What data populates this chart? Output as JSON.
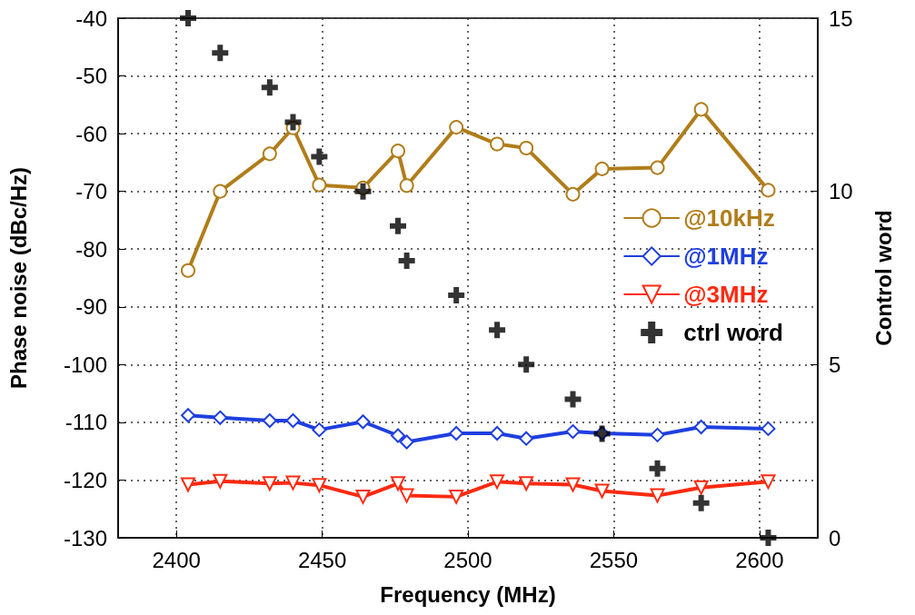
{
  "chart_data": {
    "type": "line",
    "xlabel": "Frequency (MHz)",
    "ylabel": "Phase noise (dBc/Hz)",
    "y2label": "Control word",
    "x": [
      2404,
      2415,
      2432,
      2440,
      2449,
      2464,
      2476,
      2479,
      2496,
      2510,
      2520,
      2536,
      2546,
      2565,
      2580,
      2603
    ],
    "xlim": [
      2380,
      2620
    ],
    "xticks": [
      2400,
      2450,
      2500,
      2550,
      2600
    ],
    "ylim": [
      -130,
      -40
    ],
    "yticks": [
      -130,
      -120,
      -110,
      -100,
      -90,
      -80,
      -70,
      -60,
      -50,
      -40
    ],
    "y2lim": [
      0,
      15
    ],
    "y2ticks": [
      0,
      5,
      10,
      15
    ],
    "grid": true,
    "legend": "right",
    "line_style": "solid",
    "series": [
      {
        "name": "@10kHz",
        "color": "#b07d1a",
        "marker": "circle",
        "values": [
          -83.7,
          -70.0,
          -63.5,
          -59.0,
          -68.9,
          -69.4,
          -63.0,
          -69.0,
          -58.9,
          -61.8,
          -62.5,
          -70.5,
          -66.1,
          -65.9,
          -55.8,
          -69.8
        ]
      },
      {
        "name": "@1MHz",
        "color": "#1f3fe0",
        "marker": "diamond",
        "values": [
          -108.8,
          -109.2,
          -109.7,
          -109.7,
          -111.3,
          -109.9,
          -112.3,
          -113.4,
          -111.9,
          -111.9,
          -112.8,
          -111.6,
          -111.9,
          -112.2,
          -110.8,
          -111.1
        ]
      },
      {
        "name": "@3MHz",
        "color": "#ff2a10",
        "marker": "triangle",
        "values": [
          -120.8,
          -120.2,
          -120.6,
          -120.5,
          -120.9,
          -122.9,
          -120.6,
          -122.7,
          -122.9,
          -120.3,
          -120.6,
          -120.8,
          -121.9,
          -122.7,
          -121.3,
          -120.3
        ]
      },
      {
        "name": "ctrl word",
        "type": "scatter",
        "axis": "y2",
        "color": "#000000",
        "marker": "cross",
        "values": [
          15,
          14,
          13,
          12,
          11,
          10,
          9,
          8,
          7,
          6,
          5,
          4,
          3,
          2,
          1,
          0
        ]
      }
    ]
  }
}
